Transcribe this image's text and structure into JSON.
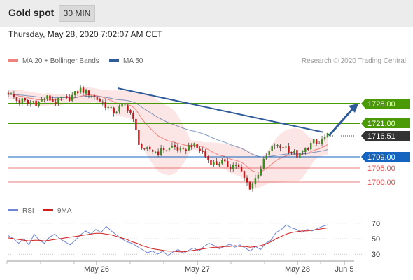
{
  "header": {
    "title": "Gold spot",
    "timeframe": "30 MIN"
  },
  "timestamp": "Thursday, May 28, 2020 7:02:07 AM CET",
  "colors": {
    "ma20": "#f0827d",
    "ma50": "#2f5b99",
    "band_fill": "#fbdcdc",
    "green": "#4a9a05",
    "blue": "#1565c0",
    "red": "#e05050",
    "current": "#333333",
    "bull": "#3d8f1e",
    "bear": "#c01818",
    "rsi": "#6f84d6",
    "rsi_ma": "#d11d1d"
  },
  "chart_data": [
    {
      "type": "candlestick",
      "legend": [
        {
          "name": "MA 20 + Bollinger Bands",
          "color": "#f0827d"
        },
        {
          "name": "MA 50",
          "color": "#2f5b99"
        }
      ],
      "legend_position": "top-left",
      "watermark": "Research © 2020 Trading Central",
      "ylim": [
        1694,
        1740
      ],
      "x_ticks": [
        "May 26",
        "May 27",
        "May 28",
        "Jun 5"
      ],
      "levels": [
        {
          "value": 1728.0,
          "label": "1728.00",
          "kind": "resistance"
        },
        {
          "value": 1721.0,
          "label": "1721.00",
          "kind": "resistance"
        },
        {
          "value": 1716.51,
          "label": "1716.51",
          "kind": "current"
        },
        {
          "value": 1709.0,
          "label": "1709.00",
          "kind": "pivot"
        },
        {
          "value": 1705.0,
          "label": "1705.00",
          "kind": "support"
        },
        {
          "value": 1700.0,
          "label": "1700.00",
          "kind": "support"
        }
      ],
      "trendline": {
        "from": 1733.5,
        "to": 1717.8
      },
      "forecast_arrow": {
        "from": 1716.6,
        "to": 1728.0
      },
      "price_path": [
        1732.0,
        1730.5,
        1728.5,
        1729.3,
        1727.8,
        1729.0,
        1728.0,
        1729.5,
        1730.2,
        1729.0,
        1728.5,
        1730.0,
        1729.2,
        1730.5,
        1731.8,
        1733.2,
        1732.0,
        1731.5,
        1730.0,
        1729.0,
        1727.5,
        1726.0,
        1725.0,
        1726.5,
        1727.5,
        1726.0,
        1721.0,
        1714.0,
        1710.5,
        1712.0,
        1711.0,
        1710.5,
        1712.0,
        1711.5,
        1713.0,
        1711.8,
        1710.5,
        1712.5,
        1713.5,
        1712.0,
        1711.0,
        1708.5,
        1707.0,
        1706.5,
        1707.5,
        1706.0,
        1705.5,
        1706.5,
        1704.0,
        1700.5,
        1698.0,
        1701.0,
        1704.5,
        1708.0,
        1711.0,
        1713.5,
        1712.0,
        1713.0,
        1711.5,
        1710.5,
        1709.0,
        1711.0,
        1712.5,
        1714.5,
        1713.0,
        1715.5,
        1716.5
      ]
    },
    {
      "type": "line",
      "name": "RSI",
      "legend": [
        {
          "name": "RSI",
          "color": "#6f84d6"
        },
        {
          "name": "9MA",
          "color": "#d11d1d"
        }
      ],
      "ylim": [
        22,
        78
      ],
      "y_ticks": [
        70,
        50,
        30
      ],
      "rsi": [
        54,
        50,
        44,
        50,
        42,
        56,
        48,
        44,
        52,
        56,
        50,
        46,
        42,
        48,
        55,
        60,
        56,
        62,
        58,
        66,
        60,
        55,
        50,
        46,
        44,
        40,
        36,
        32,
        34,
        30,
        34,
        28,
        33,
        36,
        31,
        35,
        38,
        34,
        40,
        44,
        41,
        37,
        40,
        43,
        39,
        42,
        38,
        34,
        40,
        36,
        44,
        48,
        58,
        62,
        68,
        64,
        62,
        58,
        62,
        60,
        63,
        66,
        68
      ],
      "rsi_ma": [
        51,
        50,
        49,
        48,
        47,
        48,
        48,
        47,
        48,
        49,
        50,
        51,
        52,
        53,
        54,
        55,
        56,
        57,
        57,
        56,
        55,
        53,
        51,
        49,
        46,
        44,
        41,
        39,
        37,
        36,
        35,
        34,
        34,
        33,
        33,
        34,
        35,
        36,
        37,
        38,
        39,
        39,
        40,
        40,
        41,
        40,
        40,
        39,
        40,
        41,
        43,
        46,
        50,
        53,
        56,
        58,
        59,
        60,
        60,
        61,
        62,
        63,
        64
      ]
    }
  ]
}
